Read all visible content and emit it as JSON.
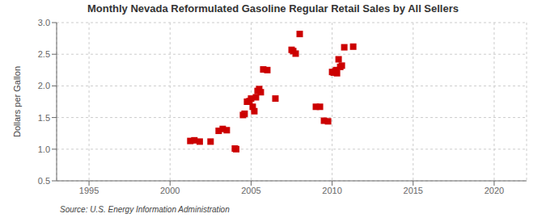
{
  "chart_data": {
    "type": "scatter",
    "title": "Monthly Nevada Reformulated Gasoline Regular Retail Sales by All Sellers",
    "ylabel": "Dollars per Gallon",
    "annotations": [
      "Source: U.S. Energy Information Administration"
    ],
    "xlim": [
      1993,
      2022
    ],
    "ylim": [
      0.5,
      3.0
    ],
    "xticks": [
      1995,
      2000,
      2005,
      2010,
      2015,
      2020
    ],
    "yticks": [
      0.5,
      {
        "value": 1.0,
        "label": "1.0"
      },
      1.5,
      {
        "value": 2.0,
        "label": "2.0"
      },
      2.5,
      {
        "value": 3.0,
        "label": "3.0"
      }
    ],
    "grid": true,
    "color": "#cc0000",
    "marker": "square",
    "x": [
      2001.25,
      2001.5,
      2001.83,
      2002.5,
      2003.0,
      2003.25,
      2003.5,
      2004.0,
      2004.08,
      2004.5,
      2004.6,
      2004.75,
      2004.9,
      2005.0,
      2005.1,
      2005.2,
      2005.3,
      2005.4,
      2005.5,
      2005.6,
      2005.75,
      2006.0,
      2006.5,
      2007.5,
      2007.6,
      2007.75,
      2008.0,
      2009.0,
      2009.25,
      2009.5,
      2009.75,
      2010.0,
      2010.1,
      2010.2,
      2010.25,
      2010.3,
      2010.4,
      2010.5,
      2010.6,
      2010.75,
      2011.3
    ],
    "values": [
      1.13,
      1.14,
      1.12,
      1.12,
      1.29,
      1.32,
      1.3,
      1.01,
      1.0,
      1.54,
      1.56,
      1.75,
      1.76,
      1.8,
      1.67,
      1.6,
      1.82,
      1.92,
      1.95,
      1.9,
      2.26,
      2.25,
      1.8,
      2.57,
      2.55,
      2.51,
      2.82,
      1.67,
      1.67,
      1.45,
      1.44,
      2.22,
      2.21,
      2.23,
      2.25,
      2.2,
      2.42,
      2.3,
      2.32,
      2.61,
      2.62
    ]
  }
}
